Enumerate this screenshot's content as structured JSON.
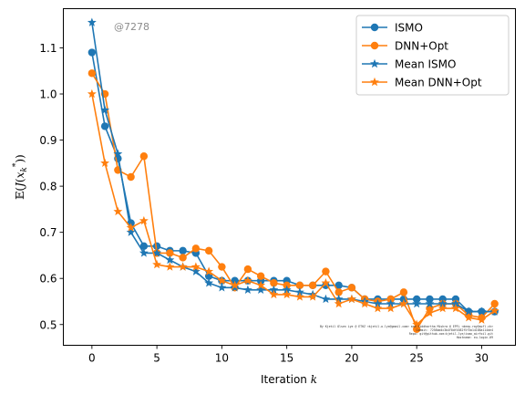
{
  "chart_data": {
    "type": "line",
    "title": "",
    "xlabel": "Iteration k",
    "ylabel": "E(J(x_k^*))",
    "xlim": [
      -2.2,
      32.6
    ],
    "ylim": [
      0.455,
      1.185
    ],
    "xticks": [
      0,
      5,
      10,
      15,
      20,
      25,
      30
    ],
    "yticks": [
      0.5,
      0.6,
      0.7,
      0.8,
      0.9,
      1.0,
      1.1
    ],
    "grid": false,
    "legend_position": "top-right",
    "x": [
      0,
      1,
      2,
      3,
      4,
      5,
      6,
      7,
      8,
      9,
      10,
      11,
      12,
      13,
      14,
      15,
      16,
      17,
      18,
      19,
      20,
      21,
      22,
      23,
      24,
      25,
      26,
      27,
      28,
      29,
      30,
      31
    ],
    "series": [
      {
        "name": "ISMO",
        "color": "#1f77b4",
        "marker": "circle",
        "values": [
          1.09,
          0.93,
          0.86,
          0.72,
          0.67,
          0.67,
          0.66,
          0.66,
          0.655,
          0.605,
          0.595,
          0.595,
          0.595,
          0.595,
          0.595,
          0.595,
          0.585,
          0.585,
          0.585,
          0.585,
          0.58,
          0.555,
          0.555,
          0.555,
          0.555,
          0.555,
          0.555,
          0.555,
          0.555,
          0.528,
          0.528,
          0.528
        ]
      },
      {
        "name": "DNN+Opt",
        "color": "#ff7f0e",
        "marker": "circle",
        "values": [
          1.045,
          1.0,
          0.835,
          0.82,
          0.865,
          0.655,
          0.655,
          0.645,
          0.665,
          0.66,
          0.625,
          0.58,
          0.62,
          0.605,
          0.59,
          0.585,
          0.585,
          0.585,
          0.615,
          0.57,
          0.58,
          0.555,
          0.55,
          0.555,
          0.57,
          0.49,
          0.535,
          0.545,
          0.545,
          0.52,
          0.515,
          0.545
        ]
      },
      {
        "name": "Mean ISMO",
        "color": "#1f77b4",
        "marker": "star",
        "values": [
          1.155,
          0.965,
          0.87,
          0.7,
          0.655,
          0.655,
          0.64,
          0.625,
          0.615,
          0.59,
          0.58,
          0.58,
          0.575,
          0.575,
          0.575,
          0.575,
          0.57,
          0.565,
          0.555,
          0.555,
          0.555,
          0.55,
          0.545,
          0.545,
          0.545,
          0.545,
          0.545,
          0.545,
          0.545,
          0.528,
          0.528,
          0.528
        ]
      },
      {
        "name": "Mean DNN+Opt",
        "color": "#ff7f0e",
        "marker": "star",
        "values": [
          1.0,
          0.85,
          0.745,
          0.71,
          0.725,
          0.63,
          0.625,
          0.625,
          0.625,
          0.615,
          0.595,
          0.585,
          0.595,
          0.585,
          0.565,
          0.565,
          0.56,
          0.56,
          0.59,
          0.545,
          0.555,
          0.545,
          0.535,
          0.535,
          0.545,
          0.5,
          0.525,
          0.535,
          0.535,
          0.515,
          0.51,
          0.53
        ]
      }
    ]
  },
  "annotations": {
    "tag": "@7278",
    "credit_lines": [
      "By Kjetil Olsen Lye @ ETHZ <kjetil.o.lye@gmail.com> and Siddhartha Mishra @ EPFL <deep.ray@epfl.ch>",
      "Commit: 7258bd4c3b4f0df4582f5f3a14168a114de4",
      "Repo: git@github.com:kjetil-lye/ismo_airfoil.git",
      "Hostname: eu-login-09"
    ]
  }
}
